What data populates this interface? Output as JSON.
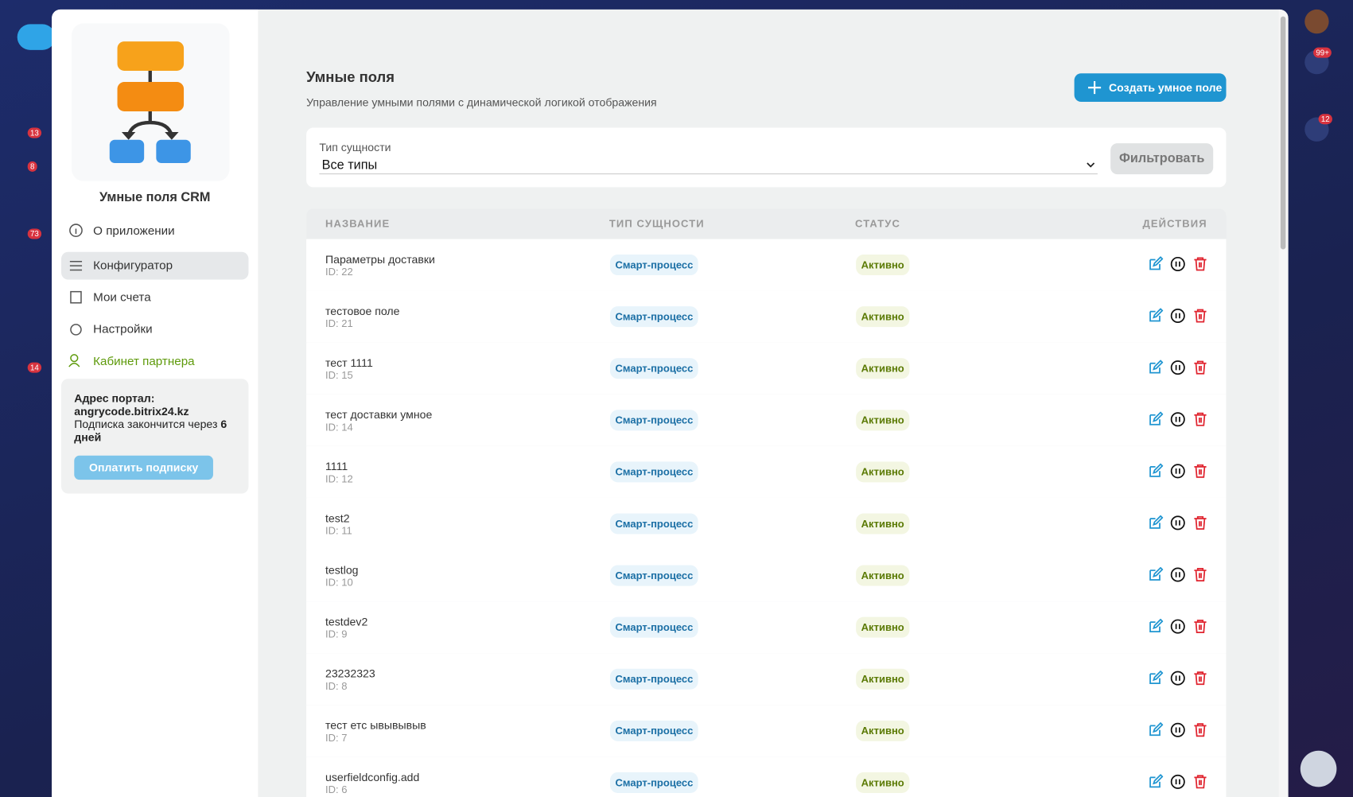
{
  "app": {
    "title": "Умные поля CRM",
    "nav": [
      "О приложении",
      "Конфигуратор",
      "Мои счета",
      "Настройки",
      "Кабинет партнера"
    ],
    "portal_label": "Адрес портал:",
    "portal_address": "angrycode.bitrix24.kz",
    "subscription_text": "Подписка закончится через",
    "subscription_days": "6 дней",
    "pay_button": "Оплатить подписку"
  },
  "header": {
    "title": "Умные поля",
    "subtitle": "Управление умными полями с динамической логикой отображения",
    "create_button": "Создать умное поле"
  },
  "filter": {
    "label": "Тип сущности",
    "value": "Все типы",
    "button": "Фильтровать"
  },
  "table": {
    "columns": [
      "НАЗВАНИЕ",
      "ТИП СУЩНОСТИ",
      "СТАТУС",
      "ДЕЙСТВИЯ"
    ],
    "rows": [
      [
        "Параметры доставки",
        "ID: 22",
        "Смарт-процесс",
        "Активно"
      ],
      [
        "тестовое поле",
        "ID: 21",
        "Смарт-процесс",
        "Активно"
      ],
      [
        "тест 1111",
        "ID: 15",
        "Смарт-процесс",
        "Активно"
      ],
      [
        "тест доставки умное",
        "ID: 14",
        "Смарт-процесс",
        "Активно"
      ],
      [
        "1111",
        "ID: 12",
        "Смарт-процесс",
        "Активно"
      ],
      [
        "test2",
        "ID: 11",
        "Смарт-процесс",
        "Активно"
      ],
      [
        "testlog",
        "ID: 10",
        "Смарт-процесс",
        "Активно"
      ],
      [
        "testdev2",
        "ID: 9",
        "Смарт-процесс",
        "Активно"
      ],
      [
        "23232323",
        "ID: 8",
        "Смарт-процесс",
        "Активно"
      ],
      [
        "тест етс ывывывыв",
        "ID: 7",
        "Смарт-процесс",
        "Активно"
      ],
      [
        "userfieldconfig.add",
        "ID: 6",
        "Смарт-процесс",
        "Активно"
      ]
    ]
  },
  "right_badges": [
    "99+",
    "12"
  ],
  "left_badges": [
    "13",
    "8",
    "73",
    "14"
  ]
}
